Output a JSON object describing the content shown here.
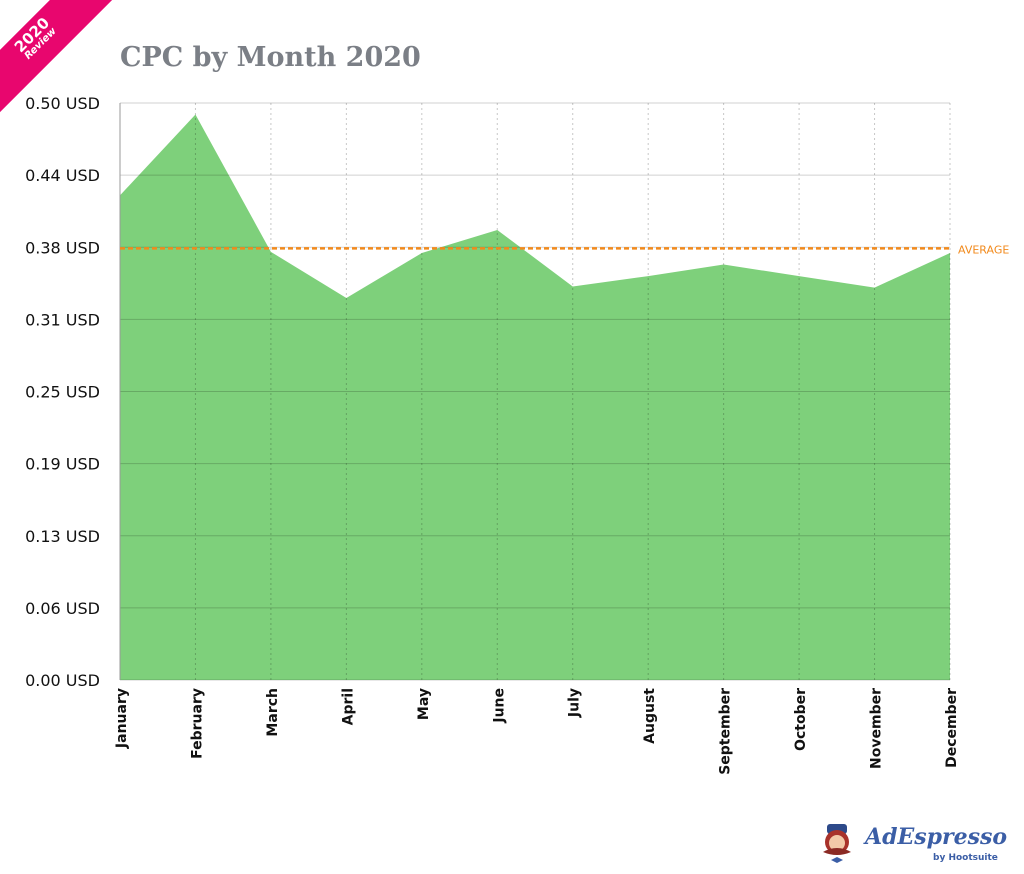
{
  "badge": {
    "year": "2020",
    "label": "Review"
  },
  "logo": {
    "brand": "AdEspresso",
    "by": "by Hootsuite"
  },
  "colors": {
    "area": "#7ed07b",
    "average": "#f28a1c",
    "title": "#7b7f86",
    "badge": "#e8066e"
  },
  "chart_data": {
    "type": "area",
    "title": "CPC by Month 2020",
    "xlabel": "",
    "ylabel": "",
    "categories": [
      "January",
      "February",
      "March",
      "April",
      "May",
      "June",
      "July",
      "August",
      "September",
      "October",
      "November",
      "December"
    ],
    "values": [
      0.42,
      0.49,
      0.371,
      0.331,
      0.37,
      0.39,
      0.341,
      0.35,
      0.36,
      0.35,
      0.34,
      0.37
    ],
    "ylim": [
      0,
      0.5
    ],
    "yticks": [
      0,
      0.0625,
      0.125,
      0.1875,
      0.25,
      0.3125,
      0.375,
      0.4375,
      0.5
    ],
    "ytick_labels": [
      "0.00 USD",
      "0.06 USD",
      "0.13 USD",
      "0.19 USD",
      "0.25 USD",
      "0.31 USD",
      "0.38 USD",
      "0.44 USD",
      "0.50 USD"
    ],
    "average": {
      "label": "AVERAGE",
      "value": 0.374
    },
    "grid": true,
    "legend": "none"
  }
}
